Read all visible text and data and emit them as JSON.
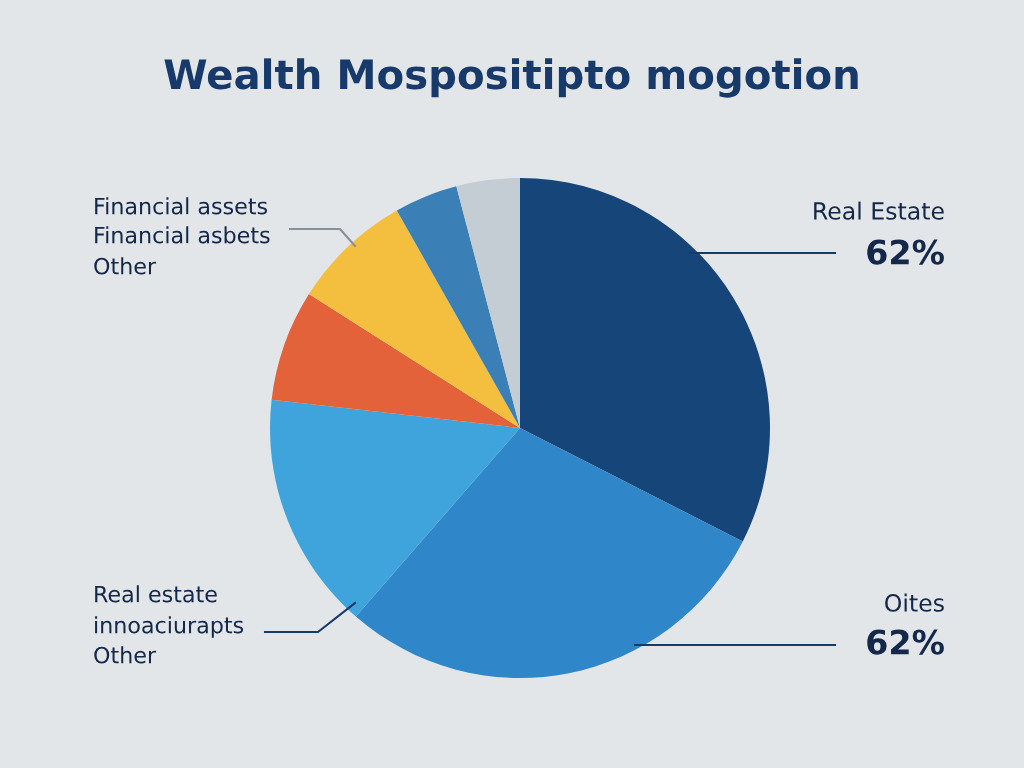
{
  "chart_data": {
    "type": "pie",
    "title": "Wealth Mospositipto mogotion",
    "categories": [
      null,
      null,
      null,
      null,
      null,
      null,
      null
    ],
    "values": [
      32.5,
      28.9,
      15.4,
      7.2,
      7.8,
      4.1,
      4.1
    ],
    "colors": [
      "#16457a",
      "#2f86c8",
      "#3fa4dc",
      "#e4623a",
      "#f4bf3f",
      "#3a7fb5",
      "#c4ccd4"
    ],
    "annotations": [
      "Real Estate",
      "62%",
      "Oites",
      "62%",
      "Financial assets",
      "Financial asbets",
      "Other",
      "Real estate",
      "innoaciurapts",
      "Other"
    ]
  }
}
